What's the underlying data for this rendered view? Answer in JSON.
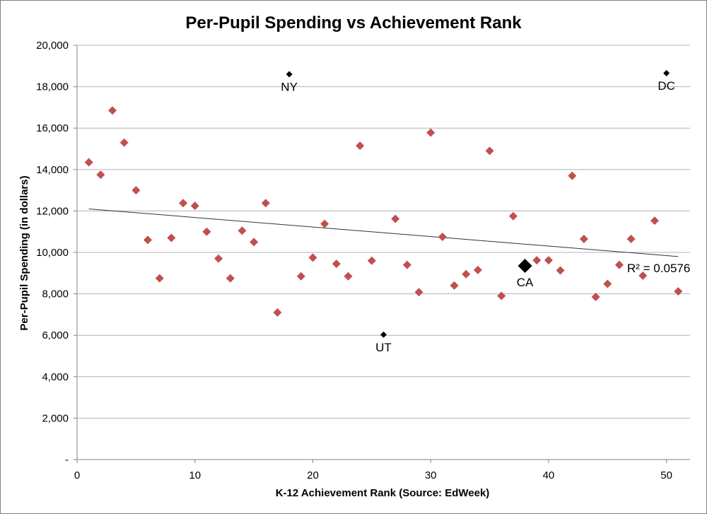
{
  "chart_data": {
    "type": "scatter",
    "title": "Per-Pupil Spending vs Achievement Rank",
    "xlabel": "K-12 Achievement Rank (Source: EdWeek)",
    "ylabel": "Per-Pupil Spending (in dollars)",
    "xlim": [
      0,
      52
    ],
    "ylim": [
      0,
      20000
    ],
    "x_ticks": [
      0,
      10,
      20,
      30,
      40,
      50
    ],
    "x_tick_labels": [
      "0",
      "10",
      "20",
      "30",
      "40",
      "50"
    ],
    "y_ticks": [
      0,
      2000,
      4000,
      6000,
      8000,
      10000,
      12000,
      14000,
      16000,
      18000,
      20000
    ],
    "y_tick_labels": [
      "-",
      "2,000",
      "4,000",
      "6,000",
      "8,000",
      "10,000",
      "12,000",
      "14,000",
      "16,000",
      "18,000",
      "20,000"
    ],
    "grid": "horizontal",
    "colors": {
      "points": "#c0504d",
      "highlight": "#000000",
      "trend": "#333333"
    },
    "series": [
      {
        "values": [
          [
            1,
            14350
          ],
          [
            2,
            13750
          ],
          [
            3,
            16850
          ],
          [
            4,
            15300
          ],
          [
            5,
            13000
          ],
          [
            6,
            10600
          ],
          [
            7,
            8750
          ],
          [
            8,
            10700
          ],
          [
            9,
            12380
          ],
          [
            10,
            12250
          ],
          [
            11,
            11000
          ],
          [
            12,
            9700
          ],
          [
            13,
            8750
          ],
          [
            14,
            11050
          ],
          [
            15,
            10500
          ],
          [
            16,
            12380
          ],
          [
            17,
            7100
          ],
          [
            19,
            8850
          ],
          [
            20,
            9750
          ],
          [
            21,
            11380
          ],
          [
            22,
            9450
          ],
          [
            23,
            8850
          ],
          [
            24,
            15150
          ],
          [
            25,
            9600
          ],
          [
            27,
            11620
          ],
          [
            28,
            9400
          ],
          [
            29,
            8080
          ],
          [
            30,
            15780
          ],
          [
            31,
            10750
          ],
          [
            32,
            8400
          ],
          [
            33,
            8950
          ],
          [
            34,
            9150
          ],
          [
            35,
            14900
          ],
          [
            36,
            7900
          ],
          [
            37,
            11750
          ],
          [
            39,
            9620
          ],
          [
            40,
            9620
          ],
          [
            41,
            9130
          ],
          [
            42,
            13700
          ],
          [
            43,
            10650
          ],
          [
            44,
            7850
          ],
          [
            45,
            8480
          ],
          [
            46,
            9400
          ],
          [
            47,
            10650
          ],
          [
            48,
            8880
          ],
          [
            49,
            11530
          ],
          [
            51,
            8120
          ]
        ]
      }
    ],
    "highlights": [
      {
        "label": "NY",
        "x": 18,
        "y": 18600,
        "label_pos": "below"
      },
      {
        "label": "DC",
        "x": 50,
        "y": 18650,
        "label_pos": "below"
      },
      {
        "label": "UT",
        "x": 26,
        "y": 6030,
        "label_pos": "below"
      },
      {
        "label": "CA",
        "x": 38,
        "y": 9350,
        "label_pos": "below",
        "emphasis": true
      }
    ],
    "trendline": {
      "x": [
        1,
        51
      ],
      "y": [
        12100,
        9800
      ]
    },
    "r_squared_label": "R² = 0.0576"
  }
}
